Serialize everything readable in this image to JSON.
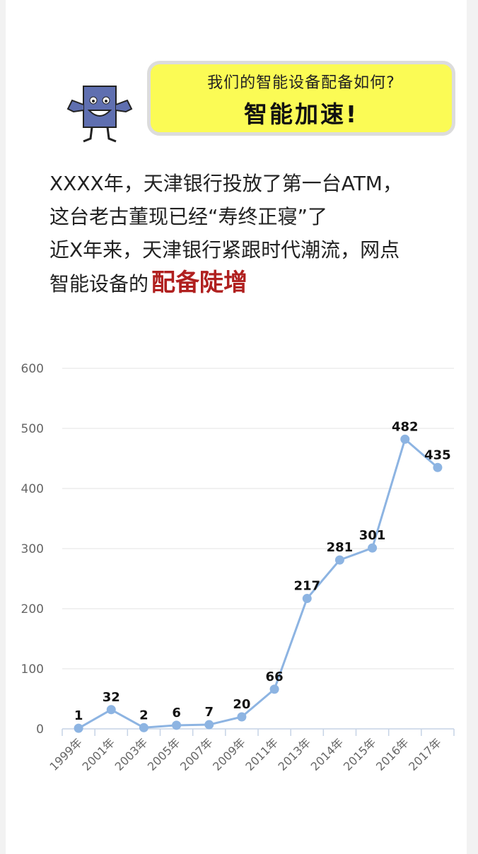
{
  "bubble": {
    "question": "我们的智能设备配备如何?",
    "answer": "智能加速!"
  },
  "intro": {
    "line1": "XXXX年，天津银行投放了第一台ATM，",
    "line2": "这台老古董现已经“寿终正寝”了",
    "line3": "近X年来，天津银行紧跟时代潮流，网点",
    "line4_prefix": "智能设备的",
    "line4_highlight": "配备陡增"
  },
  "colors": {
    "line": "#8db4e2",
    "highlight": "#b0201f",
    "bubble": "#fbfb55"
  },
  "chart_data": {
    "type": "line",
    "title": "",
    "xlabel": "",
    "ylabel": "",
    "categories": [
      "1999年",
      "2001年",
      "2003年",
      "2005年",
      "2007年",
      "2009年",
      "2011年",
      "2013年",
      "2014年",
      "2015年",
      "2016年",
      "2017年"
    ],
    "values": [
      1,
      32,
      2,
      6,
      7,
      20,
      66,
      217,
      281,
      301,
      482,
      435
    ],
    "yticks": [
      0,
      100,
      200,
      300,
      400,
      500,
      600
    ],
    "ylim": [
      0,
      600
    ],
    "grid": true,
    "legend": "none"
  }
}
